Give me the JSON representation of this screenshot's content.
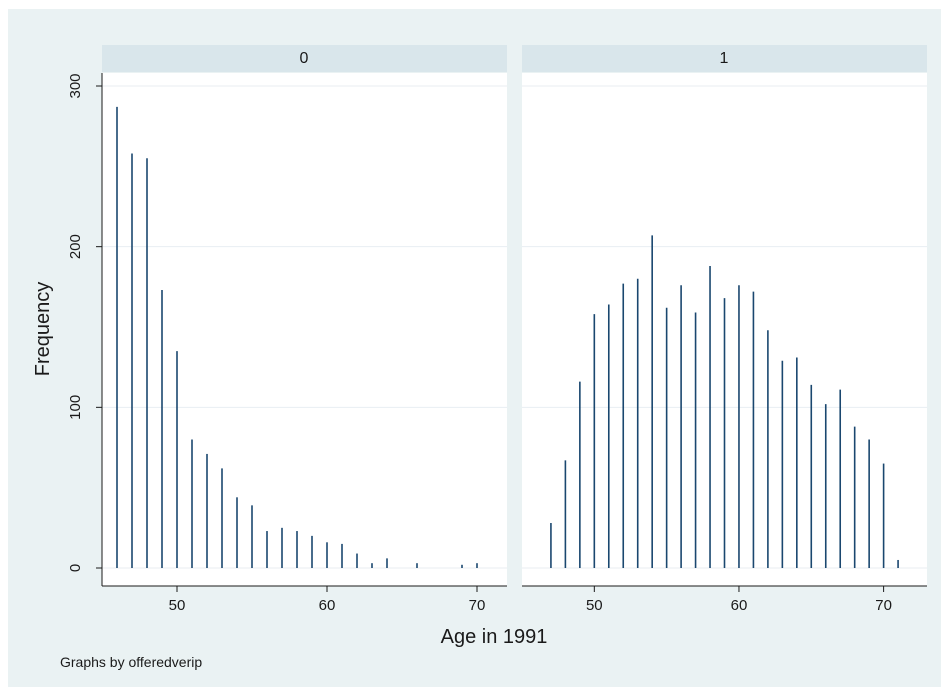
{
  "chart_data": {
    "type": "bar",
    "subtype": "spike-histogram",
    "ylabel": "Frequency",
    "xlabel": "Age in 1991",
    "note": "Graphs by offeredverip",
    "ylim": [
      0,
      300
    ],
    "yticks": [
      0,
      100,
      200,
      300
    ],
    "grid": true,
    "colors": {
      "spike": "#1a476f",
      "outer_bg": "#eaf2f3",
      "plot_bg": "#ffffff",
      "strip_bg": "#d9e6eb"
    },
    "panels": [
      {
        "title": "0",
        "xlim": [
          45,
          72
        ],
        "xticks": [
          50,
          60,
          70
        ],
        "x": [
          46,
          47,
          48,
          49,
          50,
          51,
          52,
          53,
          54,
          55,
          56,
          57,
          58,
          59,
          60,
          61,
          62,
          63,
          64,
          66,
          69,
          70
        ],
        "values": [
          287,
          258,
          255,
          173,
          135,
          80,
          71,
          62,
          44,
          39,
          23,
          25,
          23,
          20,
          16,
          15,
          9,
          3,
          6,
          3,
          2,
          3
        ]
      },
      {
        "title": "1",
        "xlim": [
          45,
          73
        ],
        "xticks": [
          50,
          60,
          70
        ],
        "x": [
          47,
          48,
          49,
          50,
          51,
          52,
          53,
          54,
          55,
          56,
          57,
          58,
          59,
          60,
          61,
          62,
          63,
          64,
          65,
          66,
          67,
          68,
          69,
          70,
          71
        ],
        "values": [
          28,
          67,
          116,
          158,
          164,
          177,
          180,
          207,
          162,
          176,
          159,
          188,
          168,
          176,
          172,
          148,
          129,
          131,
          114,
          102,
          111,
          88,
          80,
          65,
          5
        ]
      }
    ]
  }
}
